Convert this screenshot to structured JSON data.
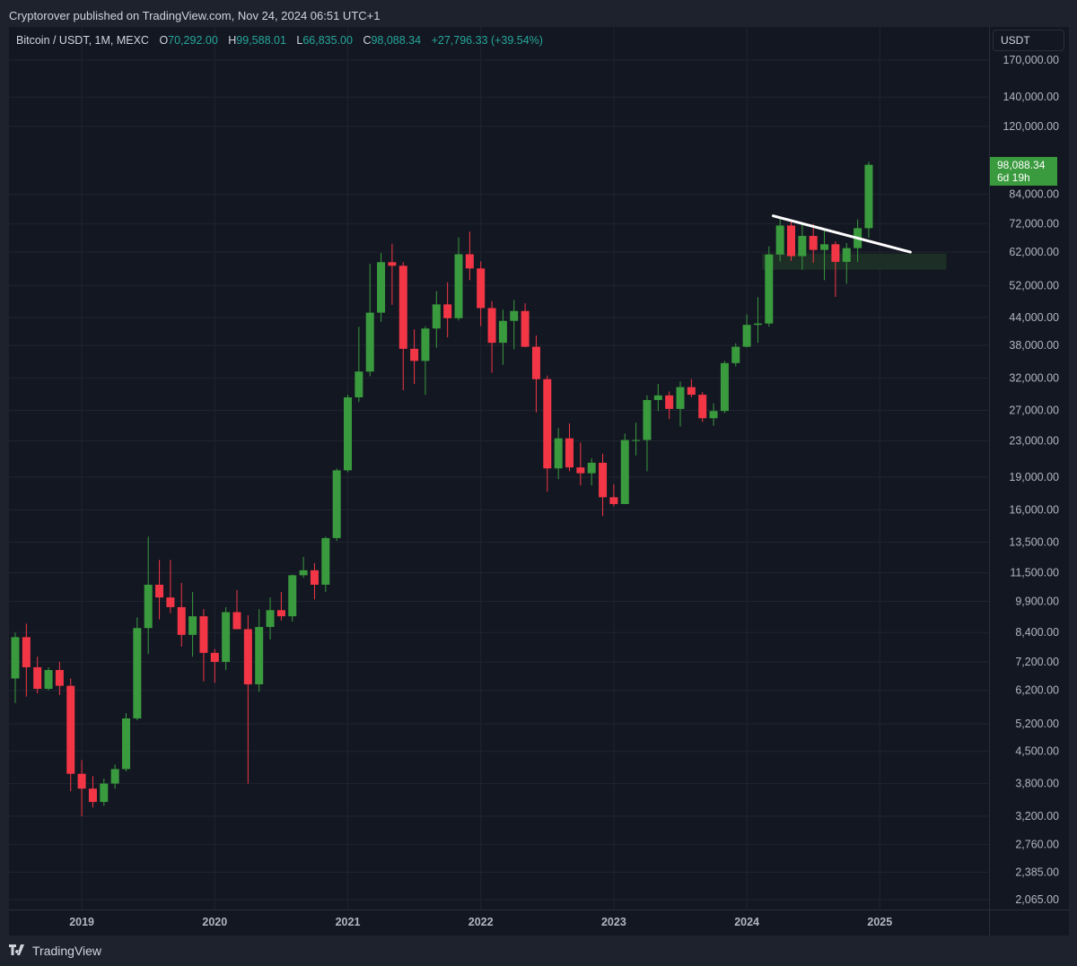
{
  "header": {
    "published_text": "Cryptorover published on TradingView.com, Nov 24, 2024 06:51 UTC+1"
  },
  "legend": {
    "symbol": "Bitcoin / USDT, 1M, MEXC",
    "open_label": "O",
    "open_value": "70,292.00",
    "high_label": "H",
    "high_value": "99,588.01",
    "low_label": "L",
    "low_value": "66,835.00",
    "close_label": "C",
    "close_value": "98,088.34",
    "change": "+27,796.33 (+39.54%)"
  },
  "price_axis": {
    "currency": "USDT",
    "current_price": "98,088.34",
    "countdown": "6d 19h"
  },
  "footer": {
    "brand": "TradingView"
  },
  "colors": {
    "up": "#3a9a3e",
    "down": "#f23645",
    "background": "#131722",
    "grid": "#1f2430",
    "text": "#b2b5be",
    "trendline": "#ffffff",
    "zone": "#1f3326"
  },
  "chart_data": {
    "type": "candlestick",
    "title": "Bitcoin / USDT, 1M, MEXC",
    "scale": "log",
    "y_ticks": [
      170000,
      140000,
      120000,
      98088.34,
      84000,
      72000,
      62000,
      52000,
      44000,
      38000,
      32000,
      27000,
      23000,
      19000,
      16000,
      13500,
      11500,
      9900,
      8400,
      7200,
      6200,
      5200,
      4500,
      3800,
      3200,
      2760,
      2385,
      2065
    ],
    "y_tick_labels": [
      "170,000.00",
      "140,000.00",
      "120,000.00",
      "98,088.34",
      "84,000.00",
      "72,000.00",
      "62,000.00",
      "52,000.00",
      "44,000.00",
      "38,000.00",
      "32,000.00",
      "27,000.00",
      "23,000.00",
      "19,000.00",
      "16,000.00",
      "13,500.00",
      "11,500.00",
      "9,900.00",
      "8,400.00",
      "7,200.00",
      "6,200.00",
      "5,200.00",
      "4,500.00",
      "3,800.00",
      "3,200.00",
      "2,760.00",
      "2,385.00",
      "2,065.00"
    ],
    "x_ticks": [
      {
        "month": 12,
        "label": "2019"
      },
      {
        "month": 24,
        "label": "2020"
      },
      {
        "month": 36,
        "label": "2021"
      },
      {
        "month": 48,
        "label": "2022"
      },
      {
        "month": 60,
        "label": "2023"
      },
      {
        "month": 72,
        "label": "2024"
      },
      {
        "month": 84,
        "label": "2025"
      }
    ],
    "month_index_note": "month 0 = Jan 2018",
    "ohlc_months": [
      {
        "m": 6,
        "o": 6600,
        "h": 8400,
        "l": 5800,
        "c": 8200
      },
      {
        "m": 7,
        "o": 8200,
        "h": 8800,
        "l": 6000,
        "c": 7000
      },
      {
        "m": 8,
        "o": 7000,
        "h": 7400,
        "l": 6100,
        "c": 6250
      },
      {
        "m": 9,
        "o": 6250,
        "h": 7000,
        "l": 6200,
        "c": 6900
      },
      {
        "m": 10,
        "o": 6900,
        "h": 7200,
        "l": 6050,
        "c": 6350
      },
      {
        "m": 11,
        "o": 6350,
        "h": 6600,
        "l": 3650,
        "c": 4000
      },
      {
        "m": 12,
        "o": 4000,
        "h": 4300,
        "l": 3200,
        "c": 3700
      },
      {
        "m": 13,
        "o": 3700,
        "h": 3950,
        "l": 3350,
        "c": 3450
      },
      {
        "m": 14,
        "o": 3450,
        "h": 3900,
        "l": 3380,
        "c": 3800
      },
      {
        "m": 15,
        "o": 3800,
        "h": 4200,
        "l": 3700,
        "c": 4100
      },
      {
        "m": 16,
        "o": 4100,
        "h": 5500,
        "l": 4050,
        "c": 5350
      },
      {
        "m": 17,
        "o": 5350,
        "h": 9100,
        "l": 5300,
        "c": 8600
      },
      {
        "m": 18,
        "o": 8600,
        "h": 13900,
        "l": 7500,
        "c": 10800
      },
      {
        "m": 19,
        "o": 10800,
        "h": 12300,
        "l": 9000,
        "c": 10100
      },
      {
        "m": 20,
        "o": 10100,
        "h": 12300,
        "l": 9300,
        "c": 9600
      },
      {
        "m": 21,
        "o": 9600,
        "h": 10900,
        "l": 7800,
        "c": 8300
      },
      {
        "m": 22,
        "o": 8300,
        "h": 10400,
        "l": 7400,
        "c": 9150
      },
      {
        "m": 23,
        "o": 9150,
        "h": 9500,
        "l": 6500,
        "c": 7550
      },
      {
        "m": 24,
        "o": 7550,
        "h": 7700,
        "l": 6450,
        "c": 7200
      },
      {
        "m": 25,
        "o": 7200,
        "h": 9600,
        "l": 6900,
        "c": 9350
      },
      {
        "m": 26,
        "o": 9350,
        "h": 10500,
        "l": 8600,
        "c": 8550
      },
      {
        "m": 27,
        "o": 8550,
        "h": 9200,
        "l": 3800,
        "c": 6400
      },
      {
        "m": 28,
        "o": 6400,
        "h": 9500,
        "l": 6150,
        "c": 8650
      },
      {
        "m": 29,
        "o": 8650,
        "h": 10100,
        "l": 8100,
        "c": 9450
      },
      {
        "m": 30,
        "o": 9450,
        "h": 10400,
        "l": 8950,
        "c": 9150
      },
      {
        "m": 31,
        "o": 9150,
        "h": 11400,
        "l": 8900,
        "c": 11350
      },
      {
        "m": 32,
        "o": 11350,
        "h": 12500,
        "l": 11200,
        "c": 11650
      },
      {
        "m": 33,
        "o": 11650,
        "h": 12100,
        "l": 10000,
        "c": 10800
      },
      {
        "m": 34,
        "o": 10800,
        "h": 13900,
        "l": 10400,
        "c": 13800
      },
      {
        "m": 35,
        "o": 13800,
        "h": 19900,
        "l": 13600,
        "c": 19700
      },
      {
        "m": 36,
        "o": 19700,
        "h": 29300,
        "l": 19500,
        "c": 28900
      },
      {
        "m": 37,
        "o": 28900,
        "h": 41900,
        "l": 28200,
        "c": 33100
      },
      {
        "m": 38,
        "o": 33100,
        "h": 58300,
        "l": 32300,
        "c": 45100
      },
      {
        "m": 39,
        "o": 45100,
        "h": 61700,
        "l": 43000,
        "c": 58800
      },
      {
        "m": 40,
        "o": 58800,
        "h": 64800,
        "l": 47000,
        "c": 57700
      },
      {
        "m": 41,
        "o": 57700,
        "h": 58800,
        "l": 30000,
        "c": 37300
      },
      {
        "m": 42,
        "o": 37300,
        "h": 41300,
        "l": 31000,
        "c": 35000
      },
      {
        "m": 43,
        "o": 35000,
        "h": 42000,
        "l": 29300,
        "c": 41500
      },
      {
        "m": 44,
        "o": 41500,
        "h": 50500,
        "l": 37500,
        "c": 47100
      },
      {
        "m": 45,
        "o": 47100,
        "h": 52900,
        "l": 39600,
        "c": 43800
      },
      {
        "m": 46,
        "o": 43800,
        "h": 66900,
        "l": 43300,
        "c": 61300
      },
      {
        "m": 47,
        "o": 61300,
        "h": 69000,
        "l": 53500,
        "c": 56900
      },
      {
        "m": 48,
        "o": 56900,
        "h": 59000,
        "l": 42000,
        "c": 46200
      },
      {
        "m": 49,
        "o": 46200,
        "h": 47900,
        "l": 32900,
        "c": 38500
      },
      {
        "m": 50,
        "o": 38500,
        "h": 45800,
        "l": 34300,
        "c": 43200
      },
      {
        "m": 51,
        "o": 43200,
        "h": 48200,
        "l": 37200,
        "c": 45500
      },
      {
        "m": 52,
        "o": 45500,
        "h": 47400,
        "l": 37600,
        "c": 37700
      },
      {
        "m": 53,
        "o": 37700,
        "h": 40000,
        "l": 26700,
        "c": 31800
      },
      {
        "m": 54,
        "o": 31800,
        "h": 32400,
        "l": 17600,
        "c": 19900
      },
      {
        "m": 55,
        "o": 19900,
        "h": 24600,
        "l": 18800,
        "c": 23300
      },
      {
        "m": 56,
        "o": 23300,
        "h": 25200,
        "l": 19600,
        "c": 20000
      },
      {
        "m": 57,
        "o": 20000,
        "h": 22800,
        "l": 18200,
        "c": 19400
      },
      {
        "m": 58,
        "o": 19400,
        "h": 21000,
        "l": 18200,
        "c": 20500
      },
      {
        "m": 59,
        "o": 20500,
        "h": 21500,
        "l": 15500,
        "c": 17100
      },
      {
        "m": 60,
        "o": 17100,
        "h": 18300,
        "l": 16300,
        "c": 16500
      },
      {
        "m": 61,
        "o": 16500,
        "h": 23900,
        "l": 16500,
        "c": 23100
      },
      {
        "m": 62,
        "o": 23100,
        "h": 25300,
        "l": 21300,
        "c": 23100
      },
      {
        "m": 63,
        "o": 23100,
        "h": 29200,
        "l": 19600,
        "c": 28500
      },
      {
        "m": 64,
        "o": 28500,
        "h": 31000,
        "l": 26900,
        "c": 29200
      },
      {
        "m": 65,
        "o": 29200,
        "h": 29800,
        "l": 25800,
        "c": 27200
      },
      {
        "m": 66,
        "o": 27200,
        "h": 31400,
        "l": 24800,
        "c": 30500
      },
      {
        "m": 67,
        "o": 30500,
        "h": 31800,
        "l": 28900,
        "c": 29300
      },
      {
        "m": 68,
        "o": 29300,
        "h": 29700,
        "l": 25400,
        "c": 25900
      },
      {
        "m": 69,
        "o": 25900,
        "h": 28000,
        "l": 24900,
        "c": 26900
      },
      {
        "m": 70,
        "o": 26900,
        "h": 35000,
        "l": 26600,
        "c": 34600
      },
      {
        "m": 71,
        "o": 34600,
        "h": 38400,
        "l": 34000,
        "c": 37700
      },
      {
        "m": 72,
        "o": 37700,
        "h": 44700,
        "l": 37600,
        "c": 42300
      },
      {
        "m": 73,
        "o": 42300,
        "h": 48900,
        "l": 38500,
        "c": 42600
      },
      {
        "m": 74,
        "o": 42600,
        "h": 63900,
        "l": 41900,
        "c": 61200
      },
      {
        "m": 75,
        "o": 61200,
        "h": 73800,
        "l": 59000,
        "c": 71300
      },
      {
        "m": 76,
        "o": 71300,
        "h": 72800,
        "l": 59200,
        "c": 60700
      },
      {
        "m": 77,
        "o": 60700,
        "h": 71900,
        "l": 56500,
        "c": 67500
      },
      {
        "m": 78,
        "o": 67500,
        "h": 71900,
        "l": 58600,
        "c": 62700
      },
      {
        "m": 79,
        "o": 62700,
        "h": 70000,
        "l": 53500,
        "c": 64600
      },
      {
        "m": 80,
        "o": 64600,
        "h": 65600,
        "l": 49000,
        "c": 58900
      },
      {
        "m": 81,
        "o": 58900,
        "h": 65000,
        "l": 52500,
        "c": 63300
      },
      {
        "m": 82,
        "o": 63300,
        "h": 73600,
        "l": 58900,
        "c": 70300
      },
      {
        "m": 83,
        "o": 70292,
        "h": 99588.01,
        "l": 66835,
        "c": 98088.34
      }
    ],
    "trendline": {
      "from": {
        "m": 76,
        "price": 75000
      },
      "to": {
        "m": 90,
        "price": 62000
      }
    },
    "zone": {
      "from_m": 75,
      "to_m": 90,
      "low": 56500,
      "high": 61500
    }
  }
}
